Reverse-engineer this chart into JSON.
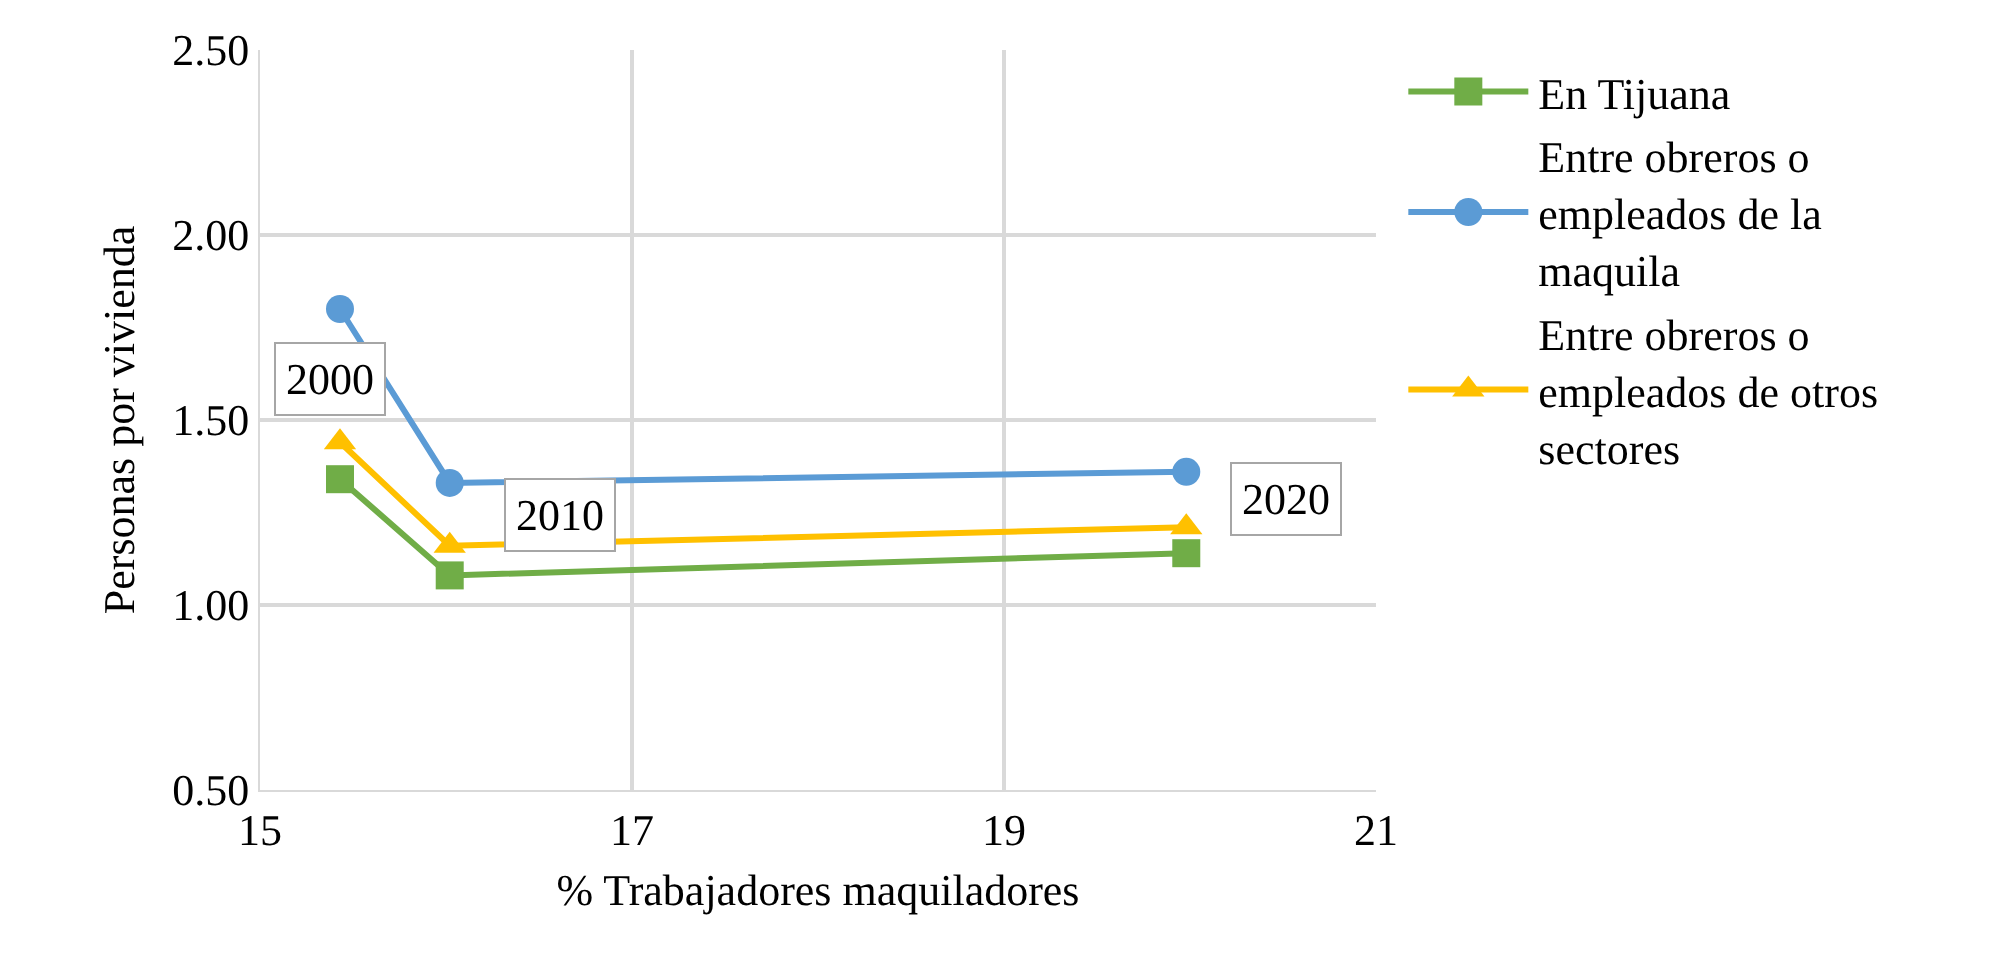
{
  "chart_data": {
    "type": "line",
    "xlabel": "% Trabajadores maquiladores",
    "ylabel": "Personas por vivienda",
    "x": [
      15.43,
      16.02,
      19.98
    ],
    "series": [
      {
        "name": "En Tijuana",
        "color": "#70ad47",
        "marker": "square",
        "values": [
          1.34,
          1.08,
          1.14
        ]
      },
      {
        "name": "Entre obreros o empleados de la maquila",
        "color": "#5b9bd5",
        "marker": "circle",
        "values": [
          1.8,
          1.33,
          1.36
        ]
      },
      {
        "name": "Entre obreros o empleados de otros sectores",
        "color": "#ffc000",
        "marker": "triangle",
        "values": [
          1.44,
          1.16,
          1.21
        ]
      }
    ],
    "annotations": [
      {
        "text": "2000",
        "x": 15.43,
        "y": 1.44
      },
      {
        "text": "2010",
        "x": 16.02,
        "y": 1.16
      },
      {
        "text": "2020",
        "x": 19.98,
        "y": 1.21
      }
    ],
    "xlim": [
      15,
      21
    ],
    "xticks": [
      15,
      17,
      19,
      21
    ],
    "ylim": [
      0.5,
      2.5
    ],
    "yticks": [
      {
        "value": 0.5,
        "label": "0.50"
      },
      {
        "value": 1,
        "label": "1.00"
      },
      {
        "value": 1.5,
        "label": "1.50"
      },
      {
        "value": 2,
        "label": "2.00"
      },
      {
        "value": 2.5,
        "label": "2.50"
      }
    ],
    "grid": true,
    "legend": "right",
    "line_style": "solid"
  }
}
